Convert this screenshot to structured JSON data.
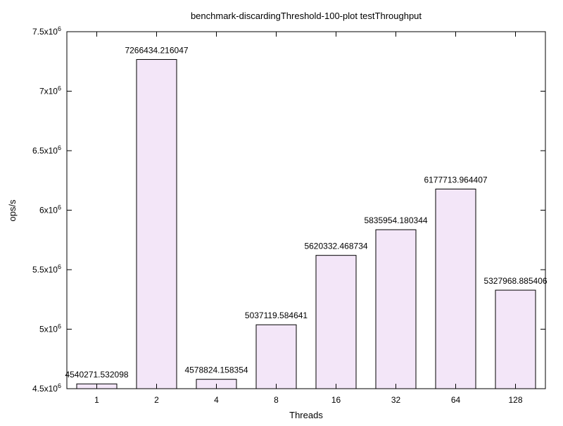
{
  "chart_data": {
    "type": "bar",
    "title": "benchmark-discardingThreshold-100-plot testThroughput",
    "xlabel": "Threads",
    "ylabel": "ops/s",
    "categories": [
      "1",
      "2",
      "4",
      "8",
      "16",
      "32",
      "64",
      "128"
    ],
    "values": [
      4540271.532098,
      7266434.216047,
      4578824.158354,
      5037119.584641,
      5620332.468734,
      5835954.180344,
      6177713.964407,
      5327968.885406
    ],
    "value_labels": [
      "4540271.532098",
      "7266434.216047",
      "4578824.158354",
      "5037119.584641",
      "5620332.468734",
      "5835954.180344",
      "6177713.964407",
      "5327968.885406"
    ],
    "ylim": [
      4500000,
      7500000
    ],
    "yticks": [
      {
        "value": 4500000,
        "mantissa": "4.5x10",
        "exp": "6"
      },
      {
        "value": 5000000,
        "mantissa": "5x10",
        "exp": "6"
      },
      {
        "value": 5500000,
        "mantissa": "5.5x10",
        "exp": "6"
      },
      {
        "value": 6000000,
        "mantissa": "6x10",
        "exp": "6"
      },
      {
        "value": 6500000,
        "mantissa": "6.5x10",
        "exp": "6"
      },
      {
        "value": 7000000,
        "mantissa": "7x10",
        "exp": "6"
      },
      {
        "value": 7500000,
        "mantissa": "7.5x10",
        "exp": "6"
      }
    ],
    "grid": false,
    "bar_fill": "#f3e6f8",
    "bar_stroke": "#000000"
  }
}
